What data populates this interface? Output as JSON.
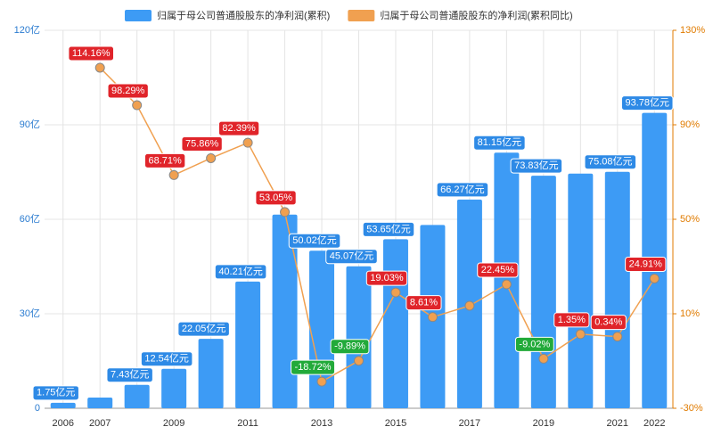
{
  "chart_data": {
    "type": "bar+line",
    "categories": [
      "2006",
      "2007",
      null,
      "2009",
      null,
      "2011",
      null,
      "2013",
      null,
      "2015",
      null,
      "2017",
      null,
      "2019",
      null,
      "2021",
      "2022"
    ],
    "series": [
      {
        "name": "归属于母公司普通股股东的净利润(累积)",
        "type": "bar",
        "color": "#3d9bf5",
        "values": [
          1.75,
          3.4,
          7.43,
          12.54,
          22.05,
          40.21,
          61.5,
          50.02,
          45.07,
          53.65,
          58.2,
          66.27,
          81.15,
          73.83,
          74.5,
          75.08,
          93.78
        ],
        "value_labels": [
          "1.75亿元",
          null,
          "7.43亿元",
          "12.54亿元",
          "22.05亿元",
          "40.21亿元",
          null,
          "50.02亿元",
          "45.07亿元",
          "53.65亿元",
          null,
          "66.27亿元",
          "81.15亿元",
          "73.83亿元",
          null,
          "75.08亿元",
          "93.78亿元"
        ]
      },
      {
        "name": "归属于母公司普通股股东的净利润(累积同比)",
        "type": "line",
        "axis": "y2",
        "color": "#f0a050",
        "values": [
          null,
          114.16,
          98.29,
          68.71,
          75.86,
          82.39,
          53.05,
          -18.72,
          -9.89,
          19.03,
          8.61,
          13.4,
          22.45,
          -9.02,
          1.35,
          0.34,
          24.91
        ],
        "value_labels": [
          null,
          "114.16%",
          "98.29%",
          "68.71%",
          "75.86%",
          "82.39%",
          "53.05%",
          "-18.72%",
          "-9.89%",
          "19.03%",
          "8.61%",
          null,
          "22.45%",
          "-9.02%",
          "1.35%",
          "0.34%",
          "24.91%"
        ]
      }
    ],
    "ylim": [
      0,
      120
    ],
    "yticks": [
      {
        "value": 0,
        "label": "0"
      },
      {
        "value": 30,
        "label": "30亿"
      },
      {
        "value": 60,
        "label": "60亿"
      },
      {
        "value": 90,
        "label": "90亿"
      },
      {
        "value": 120,
        "label": "120亿"
      }
    ],
    "y2lim": [
      -30,
      130
    ],
    "y2ticks": [
      {
        "value": -30,
        "label": "-30%"
      },
      {
        "value": 10,
        "label": "10%"
      },
      {
        "value": 50,
        "label": "50%"
      },
      {
        "value": 90,
        "label": "90%"
      },
      {
        "value": 130,
        "label": "130%"
      }
    ],
    "grid": true,
    "legend": "top"
  }
}
